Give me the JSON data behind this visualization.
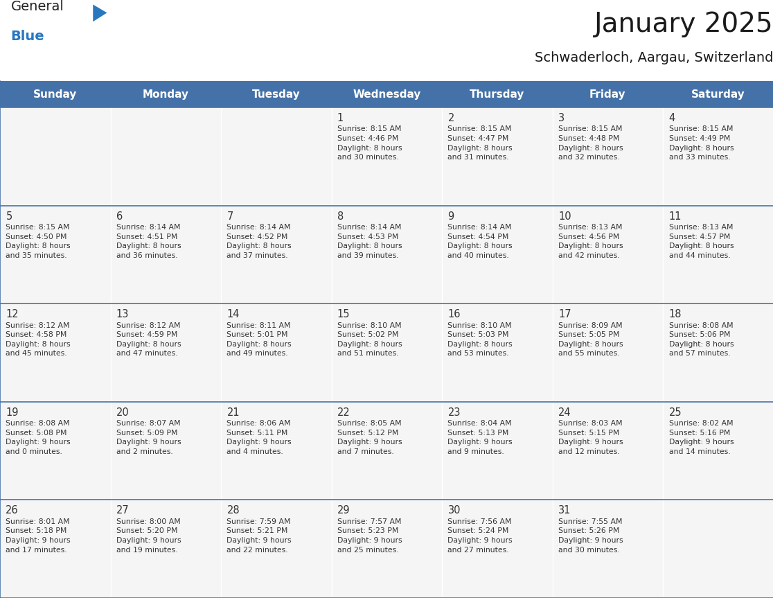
{
  "title": "January 2025",
  "subtitle": "Schwaderloch, Aargau, Switzerland",
  "days_of_week": [
    "Sunday",
    "Monday",
    "Tuesday",
    "Wednesday",
    "Thursday",
    "Friday",
    "Saturday"
  ],
  "header_bg": "#4472a8",
  "header_text": "#ffffff",
  "cell_bg": "#f5f5f5",
  "border_color": "#4472a8",
  "text_color": "#333333",
  "logo_text_color": "#222222",
  "logo_blue_color": "#2878c0",
  "title_color": "#1a1a1a",
  "calendar_data": [
    [
      {
        "day": "",
        "info": ""
      },
      {
        "day": "",
        "info": ""
      },
      {
        "day": "",
        "info": ""
      },
      {
        "day": "1",
        "info": "Sunrise: 8:15 AM\nSunset: 4:46 PM\nDaylight: 8 hours\nand 30 minutes."
      },
      {
        "day": "2",
        "info": "Sunrise: 8:15 AM\nSunset: 4:47 PM\nDaylight: 8 hours\nand 31 minutes."
      },
      {
        "day": "3",
        "info": "Sunrise: 8:15 AM\nSunset: 4:48 PM\nDaylight: 8 hours\nand 32 minutes."
      },
      {
        "day": "4",
        "info": "Sunrise: 8:15 AM\nSunset: 4:49 PM\nDaylight: 8 hours\nand 33 minutes."
      }
    ],
    [
      {
        "day": "5",
        "info": "Sunrise: 8:15 AM\nSunset: 4:50 PM\nDaylight: 8 hours\nand 35 minutes."
      },
      {
        "day": "6",
        "info": "Sunrise: 8:14 AM\nSunset: 4:51 PM\nDaylight: 8 hours\nand 36 minutes."
      },
      {
        "day": "7",
        "info": "Sunrise: 8:14 AM\nSunset: 4:52 PM\nDaylight: 8 hours\nand 37 minutes."
      },
      {
        "day": "8",
        "info": "Sunrise: 8:14 AM\nSunset: 4:53 PM\nDaylight: 8 hours\nand 39 minutes."
      },
      {
        "day": "9",
        "info": "Sunrise: 8:14 AM\nSunset: 4:54 PM\nDaylight: 8 hours\nand 40 minutes."
      },
      {
        "day": "10",
        "info": "Sunrise: 8:13 AM\nSunset: 4:56 PM\nDaylight: 8 hours\nand 42 minutes."
      },
      {
        "day": "11",
        "info": "Sunrise: 8:13 AM\nSunset: 4:57 PM\nDaylight: 8 hours\nand 44 minutes."
      }
    ],
    [
      {
        "day": "12",
        "info": "Sunrise: 8:12 AM\nSunset: 4:58 PM\nDaylight: 8 hours\nand 45 minutes."
      },
      {
        "day": "13",
        "info": "Sunrise: 8:12 AM\nSunset: 4:59 PM\nDaylight: 8 hours\nand 47 minutes."
      },
      {
        "day": "14",
        "info": "Sunrise: 8:11 AM\nSunset: 5:01 PM\nDaylight: 8 hours\nand 49 minutes."
      },
      {
        "day": "15",
        "info": "Sunrise: 8:10 AM\nSunset: 5:02 PM\nDaylight: 8 hours\nand 51 minutes."
      },
      {
        "day": "16",
        "info": "Sunrise: 8:10 AM\nSunset: 5:03 PM\nDaylight: 8 hours\nand 53 minutes."
      },
      {
        "day": "17",
        "info": "Sunrise: 8:09 AM\nSunset: 5:05 PM\nDaylight: 8 hours\nand 55 minutes."
      },
      {
        "day": "18",
        "info": "Sunrise: 8:08 AM\nSunset: 5:06 PM\nDaylight: 8 hours\nand 57 minutes."
      }
    ],
    [
      {
        "day": "19",
        "info": "Sunrise: 8:08 AM\nSunset: 5:08 PM\nDaylight: 9 hours\nand 0 minutes."
      },
      {
        "day": "20",
        "info": "Sunrise: 8:07 AM\nSunset: 5:09 PM\nDaylight: 9 hours\nand 2 minutes."
      },
      {
        "day": "21",
        "info": "Sunrise: 8:06 AM\nSunset: 5:11 PM\nDaylight: 9 hours\nand 4 minutes."
      },
      {
        "day": "22",
        "info": "Sunrise: 8:05 AM\nSunset: 5:12 PM\nDaylight: 9 hours\nand 7 minutes."
      },
      {
        "day": "23",
        "info": "Sunrise: 8:04 AM\nSunset: 5:13 PM\nDaylight: 9 hours\nand 9 minutes."
      },
      {
        "day": "24",
        "info": "Sunrise: 8:03 AM\nSunset: 5:15 PM\nDaylight: 9 hours\nand 12 minutes."
      },
      {
        "day": "25",
        "info": "Sunrise: 8:02 AM\nSunset: 5:16 PM\nDaylight: 9 hours\nand 14 minutes."
      }
    ],
    [
      {
        "day": "26",
        "info": "Sunrise: 8:01 AM\nSunset: 5:18 PM\nDaylight: 9 hours\nand 17 minutes."
      },
      {
        "day": "27",
        "info": "Sunrise: 8:00 AM\nSunset: 5:20 PM\nDaylight: 9 hours\nand 19 minutes."
      },
      {
        "day": "28",
        "info": "Sunrise: 7:59 AM\nSunset: 5:21 PM\nDaylight: 9 hours\nand 22 minutes."
      },
      {
        "day": "29",
        "info": "Sunrise: 7:57 AM\nSunset: 5:23 PM\nDaylight: 9 hours\nand 25 minutes."
      },
      {
        "day": "30",
        "info": "Sunrise: 7:56 AM\nSunset: 5:24 PM\nDaylight: 9 hours\nand 27 minutes."
      },
      {
        "day": "31",
        "info": "Sunrise: 7:55 AM\nSunset: 5:26 PM\nDaylight: 9 hours\nand 30 minutes."
      },
      {
        "day": "",
        "info": ""
      }
    ]
  ]
}
